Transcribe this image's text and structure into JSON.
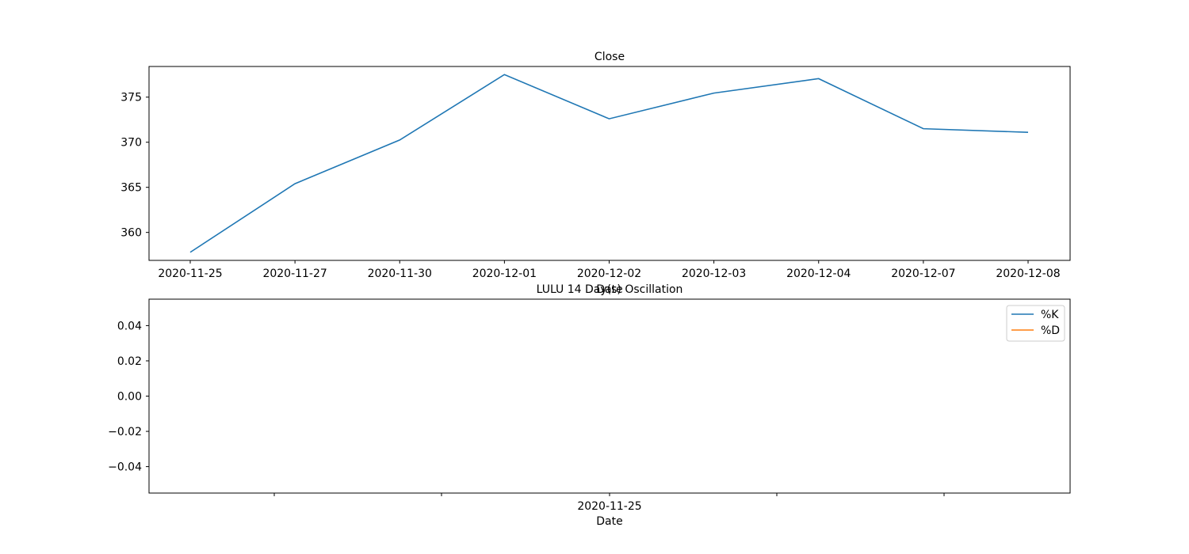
{
  "colors": {
    "series_k": "#1f77b4",
    "series_d": "#ff7f0e",
    "axes": "#000000",
    "background": "#ffffff"
  },
  "chart_data": [
    {
      "type": "line",
      "title": "Close",
      "xlabel": "Date",
      "ylabel": "",
      "x": [
        "2020-11-25",
        "2020-11-27",
        "2020-11-30",
        "2020-12-01",
        "2020-12-02",
        "2020-12-03",
        "2020-12-04",
        "2020-12-07",
        "2020-12-08"
      ],
      "series": [
        {
          "values": [
            357.8,
            365.4,
            370.25,
            377.5,
            372.6,
            375.45,
            377.05,
            371.5,
            371.1
          ]
        }
      ],
      "ylim": [
        356.9,
        378.4
      ],
      "yticks": [
        360,
        365,
        370,
        375
      ],
      "ytick_labels": [
        "360",
        "365",
        "370",
        "375"
      ],
      "grid": false,
      "legend": "none"
    },
    {
      "type": "line",
      "title": "LULU 14 Day(s) Oscillation",
      "xlabel": "Date",
      "ylabel": "",
      "x_tick_labels": [
        "",
        "",
        "2020-11-25",
        "",
        ""
      ],
      "series": [
        {
          "name": "%K",
          "values": []
        },
        {
          "name": "%D",
          "values": []
        }
      ],
      "ylim": [
        -0.055,
        0.055
      ],
      "yticks": [
        0.04,
        0.02,
        0.0,
        -0.02,
        -0.04
      ],
      "ytick_labels": [
        "0.04",
        "0.02",
        "0.00",
        "−0.02",
        "−0.04"
      ],
      "grid": false,
      "legend": "top-right"
    }
  ]
}
